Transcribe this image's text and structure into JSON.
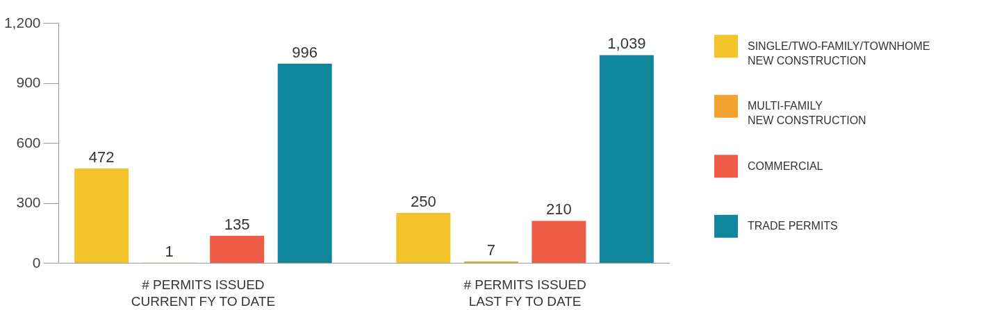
{
  "chart_data": {
    "type": "bar",
    "categories": [
      "# PERMITS ISSUED\nCURRENT FY TO DATE",
      "# PERMITS ISSUED\nLAST FY TO DATE"
    ],
    "series": [
      {
        "name": "SINGLE/TWO-FAMILY/TOWNHOME\nNEW CONSTRUCTION",
        "color": "#f2c42a",
        "values": [
          472,
          250
        ]
      },
      {
        "name": "MULTI-FAMILY\nNEW CONSTRUCTION",
        "color": "#f2a22e",
        "values": [
          1,
          7
        ]
      },
      {
        "name": "COMMERCIAL",
        "color": "#ef5c48",
        "values": [
          135,
          210
        ]
      },
      {
        "name": "TRADE PERMITS",
        "color": "#10869c",
        "values": [
          996,
          1039
        ],
        "value_labels": [
          "996",
          "1,039"
        ]
      }
    ],
    "ylim": [
      0,
      1200
    ],
    "yticks": [
      0,
      300,
      600,
      900,
      {
        "value": 1200,
        "label": "1,200"
      }
    ],
    "grid": false,
    "legend": "right",
    "data_labels": true
  }
}
